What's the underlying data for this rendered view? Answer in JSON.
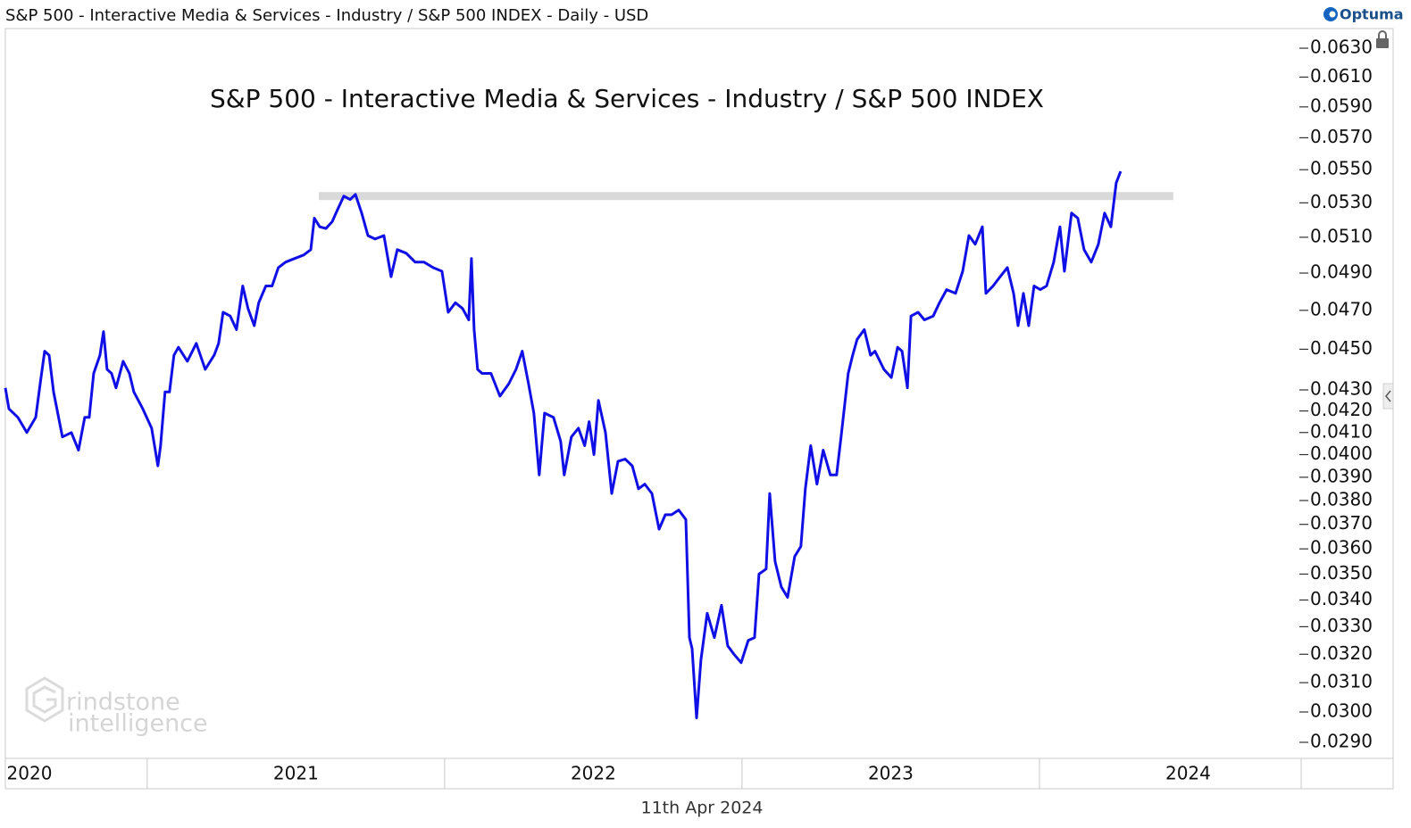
{
  "chart_data": {
    "type": "line",
    "header": "S&P 500 - Interactive Media & Services - Industry / S&P 500 INDEX - Daily - USD",
    "title": "S&P 500 - Interactive Media & Services - Industry / S&P 500 INDEX",
    "date_label": "11th Apr 2024",
    "brand": "Optuma",
    "watermark": [
      "rindstone",
      "intelligence"
    ],
    "log_scale": true,
    "ylim": [
      0.02854,
      0.0644
    ],
    "yticks": [
      {
        "value": 0.029,
        "label": "0.0290"
      },
      {
        "value": 0.03,
        "label": "0.0300"
      },
      {
        "value": 0.031,
        "label": "0.0310"
      },
      {
        "value": 0.032,
        "label": "0.0320"
      },
      {
        "value": 0.033,
        "label": "0.0330"
      },
      {
        "value": 0.034,
        "label": "0.0340"
      },
      {
        "value": 0.035,
        "label": "0.0350"
      },
      {
        "value": 0.036,
        "label": "0.0360"
      },
      {
        "value": 0.037,
        "label": "0.0370"
      },
      {
        "value": 0.038,
        "label": "0.0380"
      },
      {
        "value": 0.039,
        "label": "0.0390"
      },
      {
        "value": 0.04,
        "label": "0.0400"
      },
      {
        "value": 0.041,
        "label": "0.0410"
      },
      {
        "value": 0.042,
        "label": "0.0420"
      },
      {
        "value": 0.043,
        "label": "0.0430"
      },
      {
        "value": 0.045,
        "label": "0.0450"
      },
      {
        "value": 0.047,
        "label": "0.0470"
      },
      {
        "value": 0.049,
        "label": "0.0490"
      },
      {
        "value": 0.051,
        "label": "0.0510"
      },
      {
        "value": 0.053,
        "label": "0.0530"
      },
      {
        "value": 0.055,
        "label": "0.0550"
      },
      {
        "value": 0.057,
        "label": "0.0570"
      },
      {
        "value": 0.059,
        "label": "0.0590"
      },
      {
        "value": 0.061,
        "label": "0.0610"
      },
      {
        "value": 0.063,
        "label": "0.0630"
      }
    ],
    "xlim": [
      2020.523,
      2024.874
    ],
    "xticks": [
      2021,
      2022,
      2023,
      2024
    ],
    "year_labels": [
      "2020",
      "2021",
      "2022",
      "2023",
      "2024"
    ],
    "resistance": {
      "y": 0.0534,
      "x": [
        2021.577,
        2024.45
      ],
      "color": "#d9d9d9"
    },
    "series": [
      {
        "color": "#1010e6",
        "x": [
          2020.523,
          2020.535,
          2020.565,
          2020.595,
          2020.625,
          2020.64,
          2020.655,
          2020.67,
          2020.685,
          2020.715,
          2020.745,
          2020.769,
          2020.79,
          2020.805,
          2020.82,
          2020.841,
          2020.853,
          2020.865,
          2020.88,
          2020.895,
          2020.919,
          2020.94,
          2020.955,
          2020.985,
          2021.015,
          2021.036,
          2021.045,
          2021.06,
          2021.075,
          2021.09,
          2021.105,
          2021.135,
          2021.165,
          2021.195,
          2021.225,
          2021.24,
          2021.255,
          2021.279,
          2021.3,
          2021.321,
          2021.339,
          2021.36,
          2021.375,
          2021.399,
          2021.42,
          2021.441,
          2021.465,
          2021.495,
          2021.526,
          2021.55,
          2021.562,
          2021.58,
          2021.601,
          2021.622,
          2021.64,
          2021.661,
          2021.682,
          2021.7,
          2021.721,
          2021.742,
          2021.766,
          2021.796,
          2021.82,
          2021.841,
          2021.871,
          2021.901,
          2021.931,
          2021.961,
          2021.991,
          2022.012,
          2022.036,
          2022.06,
          2022.081,
          2022.09,
          2022.099,
          2022.111,
          2022.126,
          2022.156,
          2022.186,
          2022.216,
          2022.24,
          2022.261,
          2022.282,
          2022.3,
          2022.318,
          2022.336,
          2022.366,
          2022.39,
          2022.402,
          2022.426,
          2022.45,
          2022.471,
          2022.486,
          2022.502,
          2022.517,
          2022.541,
          2022.562,
          2022.583,
          2022.607,
          2022.631,
          2022.652,
          2022.673,
          2022.697,
          2022.721,
          2022.742,
          2022.763,
          2022.787,
          2022.811,
          2022.823,
          2022.832,
          2022.847,
          2022.862,
          2022.883,
          2022.907,
          2022.931,
          2022.952,
          2022.973,
          2022.997,
          2023.021,
          2023.042,
          2023.057,
          2023.081,
          2023.093,
          2023.111,
          2023.132,
          2023.153,
          2023.177,
          2023.198,
          2023.213,
          2023.231,
          2023.252,
          2023.273,
          2023.297,
          2023.318,
          2023.333,
          2023.357,
          2023.372,
          2023.387,
          2023.411,
          2023.432,
          2023.447,
          2023.477,
          2023.502,
          2023.523,
          2023.538,
          2023.556,
          2023.568,
          2023.592,
          2023.613,
          2023.643,
          2023.664,
          2023.688,
          2023.718,
          2023.742,
          2023.763,
          2023.784,
          2023.808,
          2023.82,
          2023.844,
          2023.868,
          2023.892,
          2023.913,
          2023.928,
          2023.946,
          2023.964,
          2023.982,
          2024.003,
          2024.024,
          2024.048,
          2024.069,
          2024.084,
          2024.108,
          2024.129,
          2024.15,
          2024.174,
          2024.198,
          2024.219,
          2024.24,
          2024.258,
          2024.273
        ],
        "values": [
          0.0431,
          0.0421,
          0.0417,
          0.041,
          0.0417,
          0.0433,
          0.0449,
          0.0447,
          0.0429,
          0.0408,
          0.041,
          0.0402,
          0.0417,
          0.0417,
          0.0438,
          0.0447,
          0.0459,
          0.044,
          0.0438,
          0.0431,
          0.0444,
          0.0438,
          0.0429,
          0.0421,
          0.0412,
          0.0395,
          0.0404,
          0.0429,
          0.0429,
          0.0447,
          0.0451,
          0.0444,
          0.0453,
          0.044,
          0.0447,
          0.0453,
          0.0469,
          0.0467,
          0.046,
          0.0483,
          0.0471,
          0.0462,
          0.0474,
          0.0483,
          0.0483,
          0.0493,
          0.0496,
          0.0498,
          0.05,
          0.0503,
          0.0521,
          0.0516,
          0.0515,
          0.0519,
          0.0526,
          0.0534,
          0.0532,
          0.0535,
          0.0524,
          0.0511,
          0.0509,
          0.0511,
          0.0488,
          0.0503,
          0.0501,
          0.0496,
          0.0496,
          0.0493,
          0.0491,
          0.0469,
          0.0474,
          0.0471,
          0.0465,
          0.0498,
          0.046,
          0.044,
          0.0438,
          0.0438,
          0.0427,
          0.0433,
          0.044,
          0.0449,
          0.0433,
          0.0419,
          0.0391,
          0.0419,
          0.0417,
          0.0406,
          0.0391,
          0.0408,
          0.0412,
          0.0404,
          0.0415,
          0.04,
          0.0425,
          0.041,
          0.0383,
          0.0397,
          0.0398,
          0.0395,
          0.0385,
          0.0387,
          0.0383,
          0.0368,
          0.0374,
          0.0374,
          0.0376,
          0.0372,
          0.0326,
          0.0322,
          0.0298,
          0.0318,
          0.0335,
          0.0326,
          0.0338,
          0.0323,
          0.032,
          0.0317,
          0.0325,
          0.0326,
          0.035,
          0.0352,
          0.0383,
          0.0355,
          0.0345,
          0.0341,
          0.0357,
          0.0361,
          0.0385,
          0.0404,
          0.0387,
          0.0402,
          0.0391,
          0.0391,
          0.0408,
          0.0438,
          0.0447,
          0.0455,
          0.046,
          0.0447,
          0.0449,
          0.044,
          0.0436,
          0.0451,
          0.0449,
          0.0431,
          0.0467,
          0.0469,
          0.0465,
          0.0467,
          0.0474,
          0.0481,
          0.0479,
          0.0491,
          0.0511,
          0.0506,
          0.0516,
          0.0479,
          0.0483,
          0.0488,
          0.0493,
          0.0479,
          0.0462,
          0.0479,
          0.0462,
          0.0483,
          0.0481,
          0.0483,
          0.0496,
          0.0516,
          0.0491,
          0.0524,
          0.0521,
          0.0503,
          0.0496,
          0.0506,
          0.0524,
          0.0516,
          0.0542,
          0.0549
        ]
      }
    ]
  }
}
